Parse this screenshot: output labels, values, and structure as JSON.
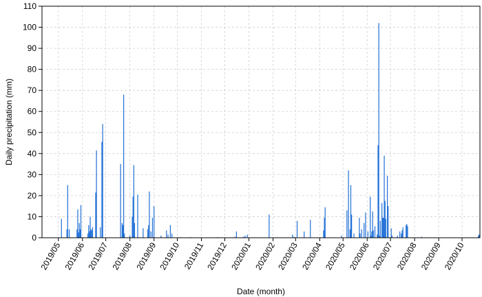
{
  "chart_data": {
    "type": "bar",
    "title": "",
    "xlabel": "Date (month)",
    "ylabel": "Daily precipitation (mm)",
    "xlim": [
      "2019-04-10",
      "2020-10-24"
    ],
    "ylim": [
      0,
      110
    ],
    "yticks": [
      0,
      10,
      20,
      30,
      40,
      50,
      60,
      70,
      80,
      90,
      100,
      110
    ],
    "xticks": [
      {
        "date": "2019-05-01",
        "label": "2019/05"
      },
      {
        "date": "2019-06-01",
        "label": "2019/06"
      },
      {
        "date": "2019-07-01",
        "label": "2019/07"
      },
      {
        "date": "2019-08-01",
        "label": "2019/08"
      },
      {
        "date": "2019-09-01",
        "label": "2019/09"
      },
      {
        "date": "2019-10-01",
        "label": "2019/10"
      },
      {
        "date": "2019-11-01",
        "label": "2019/11"
      },
      {
        "date": "2019-12-01",
        "label": "2019/12"
      },
      {
        "date": "2020-01-01",
        "label": "2020/01"
      },
      {
        "date": "2020-02-01",
        "label": "2020/02"
      },
      {
        "date": "2020-03-01",
        "label": "2020/03"
      },
      {
        "date": "2020-04-01",
        "label": "2020/04"
      },
      {
        "date": "2020-05-01",
        "label": "2020/05"
      },
      {
        "date": "2020-06-01",
        "label": "2020/06"
      },
      {
        "date": "2020-07-01",
        "label": "2020/07"
      },
      {
        "date": "2020-08-01",
        "label": "2020/08"
      },
      {
        "date": "2020-09-01",
        "label": "2020/09"
      },
      {
        "date": "2020-10-01",
        "label": "2020/10"
      }
    ],
    "grid": true,
    "bar_color": "#1f6fd6",
    "series": [
      {
        "points": [
          [
            "2019-05-05",
            9
          ],
          [
            "2019-05-12",
            4
          ],
          [
            "2019-05-13",
            25
          ],
          [
            "2019-05-15",
            4
          ],
          [
            "2019-05-25",
            4
          ],
          [
            "2019-05-26",
            13.5
          ],
          [
            "2019-05-27",
            2.5
          ],
          [
            "2019-05-28",
            7
          ],
          [
            "2019-05-29",
            4
          ],
          [
            "2019-05-30",
            15.5
          ],
          [
            "2019-06-08",
            2
          ],
          [
            "2019-06-09",
            6
          ],
          [
            "2019-06-10",
            3
          ],
          [
            "2019-06-11",
            10
          ],
          [
            "2019-06-12",
            4
          ],
          [
            "2019-06-13",
            3.5
          ],
          [
            "2019-06-14",
            5
          ],
          [
            "2019-06-18",
            21.5
          ],
          [
            "2019-06-19",
            41.5
          ],
          [
            "2019-06-24",
            5
          ],
          [
            "2019-06-26",
            45.5
          ],
          [
            "2019-06-27",
            54
          ],
          [
            "2019-07-20",
            35
          ],
          [
            "2019-07-22",
            7
          ],
          [
            "2019-07-23",
            6
          ],
          [
            "2019-07-24",
            68
          ],
          [
            "2019-07-25",
            2
          ],
          [
            "2019-08-01",
            1
          ],
          [
            "2019-08-04",
            10
          ],
          [
            "2019-08-05",
            19.5
          ],
          [
            "2019-08-06",
            34.5
          ],
          [
            "2019-08-07",
            7
          ],
          [
            "2019-08-11",
            20.5
          ],
          [
            "2019-08-18",
            4.5
          ],
          [
            "2019-08-24",
            4
          ],
          [
            "2019-08-25",
            6
          ],
          [
            "2019-08-26",
            22
          ],
          [
            "2019-08-28",
            3
          ],
          [
            "2019-08-30",
            9.5
          ],
          [
            "2019-09-01",
            15
          ],
          [
            "2019-09-10",
            1
          ],
          [
            "2019-09-17",
            3.5
          ],
          [
            "2019-09-19",
            1.5
          ],
          [
            "2019-09-22",
            6
          ],
          [
            "2019-09-24",
            2
          ],
          [
            "2019-10-05",
            0.3
          ],
          [
            "2019-10-18",
            0.3
          ],
          [
            "2019-11-22",
            0.3
          ],
          [
            "2019-12-14",
            0.5
          ],
          [
            "2019-12-16",
            3
          ],
          [
            "2019-12-25",
            0.5
          ],
          [
            "2019-12-27",
            1
          ],
          [
            "2019-12-30",
            1.5
          ],
          [
            "2020-01-27",
            11
          ],
          [
            "2020-02-26",
            1.5
          ],
          [
            "2020-02-28",
            0.5
          ],
          [
            "2020-03-03",
            8
          ],
          [
            "2020-03-12",
            3
          ],
          [
            "2020-03-20",
            8.5
          ],
          [
            "2020-04-06",
            3.5
          ],
          [
            "2020-04-07",
            9.5
          ],
          [
            "2020-04-08",
            14.5
          ],
          [
            "2020-04-29",
            1
          ],
          [
            "2020-05-06",
            13
          ],
          [
            "2020-05-08",
            32
          ],
          [
            "2020-05-10",
            4
          ],
          [
            "2020-05-11",
            25
          ],
          [
            "2020-05-12",
            11
          ],
          [
            "2020-05-15",
            2
          ],
          [
            "2020-05-22",
            9.5
          ],
          [
            "2020-05-23",
            2
          ],
          [
            "2020-05-25",
            4
          ],
          [
            "2020-05-28",
            7
          ],
          [
            "2020-05-30",
            12
          ],
          [
            "2020-06-02",
            3
          ],
          [
            "2020-06-05",
            19.5
          ],
          [
            "2020-06-06",
            1
          ],
          [
            "2020-06-07",
            3
          ],
          [
            "2020-06-08",
            12.5
          ],
          [
            "2020-06-09",
            3.5
          ],
          [
            "2020-06-11",
            5.5
          ],
          [
            "2020-06-14",
            1.5
          ],
          [
            "2020-06-15",
            44
          ],
          [
            "2020-06-16",
            102
          ],
          [
            "2020-06-17",
            1
          ],
          [
            "2020-06-18",
            8
          ],
          [
            "2020-06-20",
            16.5
          ],
          [
            "2020-06-21",
            9.5
          ],
          [
            "2020-06-22",
            9.5
          ],
          [
            "2020-06-23",
            39
          ],
          [
            "2020-06-24",
            17.5
          ],
          [
            "2020-06-25",
            9
          ],
          [
            "2020-06-27",
            29.5
          ],
          [
            "2020-06-28",
            15
          ],
          [
            "2020-07-02",
            4.5
          ],
          [
            "2020-07-03",
            1
          ],
          [
            "2020-07-10",
            1
          ],
          [
            "2020-07-13",
            3
          ],
          [
            "2020-07-15",
            2
          ],
          [
            "2020-07-16",
            3.5
          ],
          [
            "2020-07-17",
            5
          ],
          [
            "2020-07-21",
            6
          ],
          [
            "2020-07-22",
            6.5
          ],
          [
            "2020-07-23",
            5.5
          ],
          [
            "2020-08-10",
            0.5
          ],
          [
            "2020-10-22",
            1
          ],
          [
            "2020-10-23",
            1.5
          ]
        ]
      }
    ]
  }
}
